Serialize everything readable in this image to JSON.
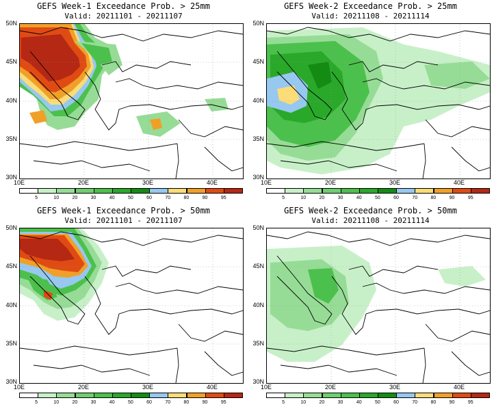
{
  "colors": {
    "0": "#ffffff",
    "5": "#c8f0c8",
    "10": "#96dc96",
    "20": "#6ecf6e",
    "30": "#4cc04c",
    "40": "#2aa82a",
    "50": "#148c14",
    "60": "#96c8f0",
    "70": "#fadc78",
    "80": "#f0a028",
    "90": "#e04b14",
    "95": "#b42814",
    "boundary": "#000000",
    "grid": "#999999"
  },
  "lat_labels": [
    "50N",
    "45N",
    "40N",
    "35N",
    "30N"
  ],
  "lon_labels": [
    "10E",
    "20E",
    "30E",
    "40E"
  ],
  "colorbar_labels": [
    "5",
    "10",
    "20",
    "30",
    "40",
    "50",
    "60",
    "70",
    "80",
    "90",
    "95"
  ],
  "panels": [
    {
      "title": "GEFS Week-1 Exceedance Prob. > 25mm",
      "valid": "Valid: 20211101 - 20211107",
      "threshold": "25mm",
      "week": 1
    },
    {
      "title": "GEFS Week-2 Exceedance Prob. > 25mm",
      "valid": "Valid: 20211108 - 20211114",
      "threshold": "25mm",
      "week": 2
    },
    {
      "title": "GEFS Week-1 Exceedance Prob. > 50mm",
      "valid": "Valid: 20211101 - 20211107",
      "threshold": "50mm",
      "week": 1
    },
    {
      "title": "GEFS Week-2 Exceedance Prob. > 50mm",
      "valid": "Valid: 20211108 - 20211114",
      "threshold": "50mm",
      "week": 2
    }
  ]
}
